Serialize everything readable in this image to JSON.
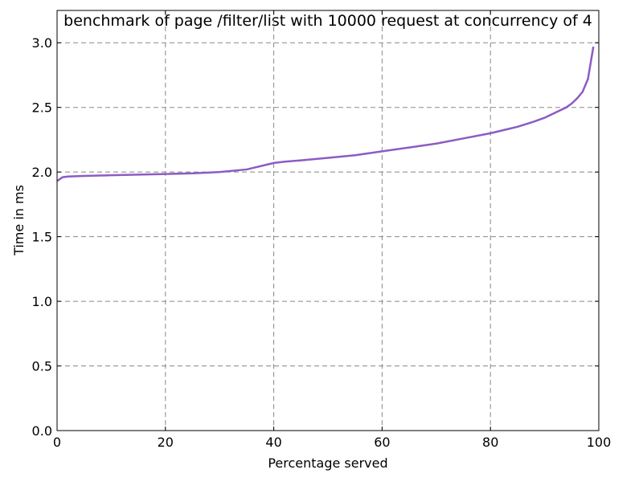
{
  "chart_data": {
    "type": "line",
    "title": "benchmark of page /filter/list with 10000 request at concurrency of 4",
    "xlabel": "Percentage served",
    "ylabel": "Time in ms",
    "xlim": [
      0,
      100
    ],
    "ylim": [
      0,
      3.25
    ],
    "x_ticks": [
      "0",
      "20",
      "40",
      "60",
      "80",
      "100"
    ],
    "y_ticks": [
      "0.0",
      "0.5",
      "1.0",
      "1.5",
      "2.0",
      "2.5",
      "3.0"
    ],
    "grid": true,
    "colors": {
      "line": "#8c5cc4",
      "grid": "#888888",
      "axis": "#000000"
    },
    "series": [
      {
        "x": [
          0,
          1,
          2,
          5,
          10,
          15,
          20,
          25,
          30,
          35,
          36,
          38,
          40,
          42,
          45,
          50,
          55,
          60,
          65,
          70,
          75,
          80,
          85,
          88,
          90,
          92,
          94,
          95,
          96,
          97,
          98,
          99
        ],
        "values": [
          1.93,
          1.96,
          1.965,
          1.97,
          1.975,
          1.98,
          1.985,
          1.99,
          2.0,
          2.02,
          2.03,
          2.05,
          2.07,
          2.08,
          2.09,
          2.11,
          2.13,
          2.16,
          2.19,
          2.22,
          2.26,
          2.3,
          2.35,
          2.39,
          2.42,
          2.46,
          2.5,
          2.53,
          2.57,
          2.62,
          2.72,
          2.97
        ]
      }
    ]
  }
}
